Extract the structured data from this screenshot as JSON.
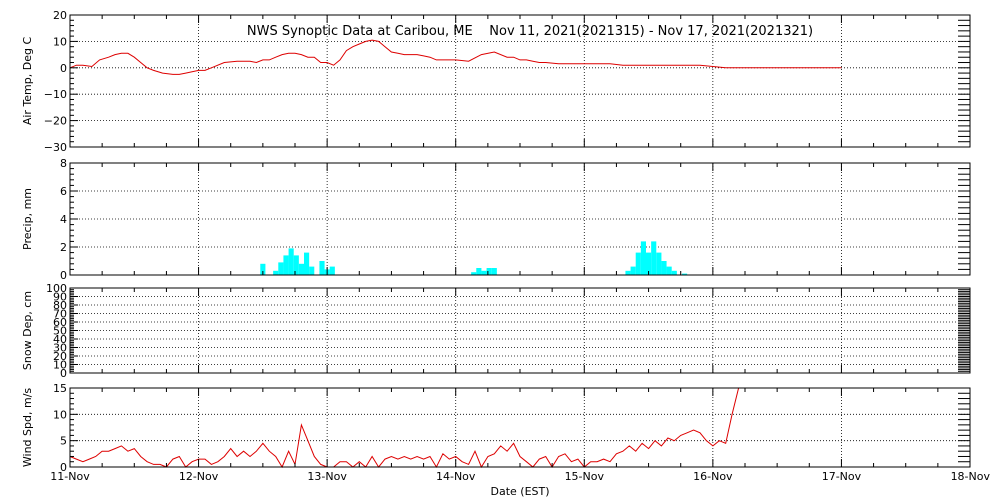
{
  "title": "NWS Synoptic Data at Caribou, ME    Nov 11, 2021(2021315) - Nov 17, 2021(2021321)",
  "xlabel": "Date (EST)",
  "x_tick_labels": [
    "11-Nov",
    "12-Nov",
    "13-Nov",
    "14-Nov",
    "15-Nov",
    "16-Nov",
    "17-Nov",
    "18-Nov"
  ],
  "x_range_days": [
    0,
    7
  ],
  "colors": {
    "line": "#dd0000",
    "bars": "#00ffff",
    "axis": "#000000",
    "grid": "#000000",
    "background": "#ffffff"
  },
  "chart_data": [
    {
      "type": "line",
      "ylabel": "Air Temp, Deg C",
      "ylim": [
        -30,
        20
      ],
      "yticks": [
        -30,
        -20,
        -10,
        0,
        10,
        20
      ],
      "grid": true,
      "x": [
        0.0,
        0.05,
        0.1,
        0.17,
        0.23,
        0.3,
        0.35,
        0.4,
        0.45,
        0.5,
        0.55,
        0.6,
        0.65,
        0.72,
        0.8,
        0.85,
        0.9,
        0.95,
        1.0,
        1.05,
        1.1,
        1.2,
        1.3,
        1.4,
        1.45,
        1.5,
        1.55,
        1.6,
        1.65,
        1.7,
        1.75,
        1.8,
        1.85,
        1.9,
        1.95,
        2.0,
        2.05,
        2.1,
        2.15,
        2.2,
        2.25,
        2.3,
        2.35,
        2.4,
        2.45,
        2.5,
        2.55,
        2.6,
        2.65,
        2.7,
        2.75,
        2.8,
        2.85,
        2.9,
        3.0,
        3.1,
        3.2,
        3.3,
        3.4,
        3.45,
        3.5,
        3.55,
        3.6,
        3.65,
        3.7,
        3.8,
        3.9,
        4.0,
        4.1,
        4.2,
        4.3,
        4.4,
        4.5,
        4.6,
        4.7,
        4.8,
        4.9,
        5.0,
        5.1,
        5.2,
        5.3,
        5.4,
        5.5,
        5.6,
        5.7,
        5.8,
        5.9,
        6.0
      ],
      "y": [
        0,
        1,
        1,
        0.5,
        3,
        4,
        5,
        5.5,
        5.5,
        4,
        2,
        0,
        -1,
        -2,
        -2.5,
        -2.5,
        -2,
        -1.5,
        -1,
        -1,
        0,
        2,
        2.5,
        2.5,
        2,
        3,
        3,
        4,
        5,
        5.5,
        5.5,
        5,
        4,
        4,
        2,
        2,
        1,
        3,
        6.5,
        8,
        9,
        10,
        10.5,
        10,
        8,
        6,
        5.5,
        5,
        5,
        5,
        4.5,
        4,
        3,
        3,
        3,
        2.5,
        5,
        6,
        4,
        4,
        3,
        3,
        2.5,
        2,
        2,
        1.5,
        1.5,
        1.5,
        1.5,
        1.5,
        1,
        1,
        1,
        1,
        1,
        1,
        1,
        0.5,
        0,
        0,
        0,
        0,
        0,
        0,
        0,
        0,
        0,
        0
      ]
    },
    {
      "type": "bar",
      "ylabel": "Precip, mm",
      "ylim": [
        0,
        8
      ],
      "yticks": [
        0,
        2,
        4,
        6,
        8
      ],
      "grid": true,
      "bar_width_days": 0.04,
      "x": [
        1.48,
        1.58,
        1.62,
        1.66,
        1.7,
        1.74,
        1.78,
        1.82,
        1.86,
        1.94,
        1.98,
        2.02,
        3.12,
        3.16,
        3.2,
        3.24,
        3.28,
        4.32,
        4.36,
        4.4,
        4.44,
        4.48,
        4.52,
        4.56,
        4.6,
        4.64,
        4.68,
        4.76
      ],
      "values": [
        0.8,
        0.3,
        0.9,
        1.4,
        1.9,
        1.4,
        0.8,
        1.6,
        0.6,
        1.0,
        0.4,
        0.6,
        0.2,
        0.5,
        0.3,
        0.5,
        0.5,
        0.3,
        0.6,
        1.6,
        2.4,
        1.6,
        2.4,
        1.6,
        1.0,
        0.6,
        0.3,
        0.1
      ]
    },
    {
      "type": "line",
      "ylabel": "Snow Dep, cm",
      "ylim": [
        0,
        100
      ],
      "yticks": [
        0,
        10,
        20,
        30,
        40,
        50,
        60,
        70,
        80,
        90,
        100
      ],
      "grid": true,
      "x": [],
      "y": []
    },
    {
      "type": "line",
      "ylabel": "Wind Spd, m/s",
      "ylim": [
        0,
        15
      ],
      "yticks": [
        0,
        5,
        10,
        15
      ],
      "grid": true,
      "x": [
        0.0,
        0.05,
        0.1,
        0.15,
        0.2,
        0.25,
        0.3,
        0.35,
        0.4,
        0.45,
        0.5,
        0.55,
        0.6,
        0.65,
        0.7,
        0.75,
        0.8,
        0.85,
        0.9,
        0.95,
        1.0,
        1.05,
        1.1,
        1.15,
        1.2,
        1.25,
        1.3,
        1.35,
        1.4,
        1.45,
        1.5,
        1.55,
        1.6,
        1.65,
        1.7,
        1.75,
        1.8,
        1.85,
        1.9,
        1.95,
        2.0,
        2.05,
        2.1,
        2.15,
        2.2,
        2.25,
        2.3,
        2.35,
        2.4,
        2.45,
        2.5,
        2.55,
        2.6,
        2.65,
        2.7,
        2.75,
        2.8,
        2.85,
        2.9,
        2.95,
        3.0,
        3.05,
        3.1,
        3.15,
        3.2,
        3.25,
        3.3,
        3.35,
        3.4,
        3.45,
        3.5,
        3.55,
        3.6,
        3.65,
        3.7,
        3.75,
        3.8,
        3.85,
        3.9,
        3.95,
        4.0,
        4.05,
        4.1,
        4.15,
        4.2,
        4.25,
        4.3,
        4.35,
        4.4,
        4.45,
        4.5,
        4.55,
        4.6,
        4.65,
        4.7,
        4.75,
        4.8,
        4.85,
        4.9,
        4.95,
        5.0,
        5.05,
        5.1,
        5.15,
        5.2,
        5.22,
        5.24
      ],
      "y": [
        2,
        1.5,
        1,
        1.5,
        2,
        3,
        3,
        3.5,
        4,
        3,
        3.5,
        2,
        1,
        0.5,
        0.5,
        0,
        1.5,
        2,
        0,
        1,
        1.5,
        1.5,
        0.5,
        1,
        2,
        3.5,
        2,
        3,
        2,
        3,
        4.5,
        3,
        2,
        0,
        3,
        0.5,
        8,
        5,
        2,
        0.5,
        0,
        0,
        1,
        1,
        0,
        1,
        0,
        2,
        0,
        1.5,
        2,
        1.5,
        2,
        1.5,
        2,
        1.5,
        2,
        0,
        2.5,
        1.5,
        2,
        1,
        0.5,
        3,
        0,
        2,
        2.5,
        4,
        3,
        4.5,
        2,
        1,
        0,
        1.5,
        2,
        0,
        2,
        2.5,
        1,
        1.5,
        0,
        1,
        1,
        1.5,
        1,
        2.5,
        3,
        4,
        3,
        4.5,
        3.5,
        5,
        4,
        5.5,
        5,
        6,
        6.5,
        7,
        6.5,
        5,
        4,
        5,
        4.5,
        10,
        15,
        15,
        15
      ]
    }
  ]
}
